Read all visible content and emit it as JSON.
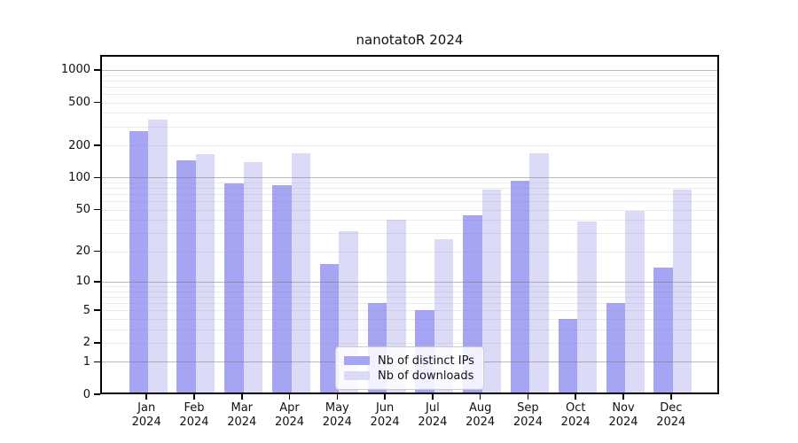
{
  "chart_data": {
    "type": "bar",
    "title": "nanotatoR 2024",
    "year": "2024",
    "categories": [
      "Jan",
      "Feb",
      "Mar",
      "Apr",
      "May",
      "Jun",
      "Jul",
      "Aug",
      "Sep",
      "Oct",
      "Nov",
      "Dec"
    ],
    "series": [
      {
        "name": "Nb of distinct IPs",
        "color": "#a5a5f3",
        "values": [
          270,
          146,
          88,
          85,
          15,
          6,
          5,
          44,
          94,
          4,
          6,
          14
        ]
      },
      {
        "name": "Nb of downloads",
        "color": "#dbdbf8",
        "values": [
          345,
          166,
          140,
          168,
          31,
          40,
          26,
          78,
          170,
          39,
          49,
          78
        ]
      }
    ],
    "y_axis": {
      "scale": "log10(v+1)",
      "tick_labels": [
        "1000",
        "500",
        "200",
        "100",
        "50",
        "20",
        "10",
        "5",
        "2",
        "1",
        "0"
      ],
      "tick_values": [
        1000,
        500,
        200,
        100,
        50,
        20,
        10,
        5,
        2,
        1,
        0
      ],
      "major_grid_values": [
        1000,
        100,
        10,
        1
      ],
      "minor_grid_values": [
        900,
        800,
        700,
        600,
        500,
        400,
        300,
        200,
        90,
        80,
        70,
        60,
        50,
        40,
        30,
        20,
        9,
        8,
        7,
        6,
        5,
        4,
        3,
        2
      ],
      "grid": true
    },
    "x_axis": {
      "label_line2": "2024"
    },
    "legend_position": "bottom-center-inside",
    "colors": {
      "grid_major": "rgba(120,120,120,0.50)",
      "grid_minor": "rgba(128,128,128,0.15)",
      "spine": "#000000",
      "background": "#ffffff"
    }
  }
}
